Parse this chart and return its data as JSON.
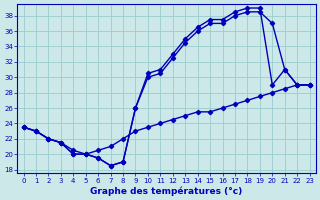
{
  "xlabel": "Graphe des températures (°c)",
  "bg_color": "#cce8e8",
  "grid_color": "#99cccc",
  "line_color": "#0000bb",
  "xlim": [
    -0.5,
    23.5
  ],
  "ylim": [
    17.5,
    39.5
  ],
  "yticks": [
    18,
    20,
    22,
    24,
    26,
    28,
    30,
    32,
    34,
    36,
    38
  ],
  "xticks": [
    0,
    1,
    2,
    3,
    4,
    5,
    6,
    7,
    8,
    9,
    10,
    11,
    12,
    13,
    14,
    15,
    16,
    17,
    18,
    19,
    20,
    21,
    22,
    23
  ],
  "line1_x": [
    0,
    1,
    2,
    3,
    4,
    5,
    6,
    7,
    8,
    9,
    10,
    11,
    12,
    13,
    14,
    15,
    16,
    17,
    18,
    19,
    20,
    21,
    22,
    23
  ],
  "line1_y": [
    23.5,
    23.0,
    22.0,
    21.5,
    20.0,
    20.0,
    19.5,
    18.5,
    19.0,
    26.0,
    30.5,
    31.0,
    33.0,
    35.0,
    36.5,
    37.5,
    37.5,
    38.5,
    39.0,
    39.0,
    29.0,
    31.0,
    29.0,
    29.0
  ],
  "line2_x": [
    0,
    1,
    2,
    3,
    4,
    5,
    6,
    7,
    8,
    9,
    10,
    11,
    12,
    13,
    14,
    15,
    16,
    17,
    18,
    19,
    20,
    21,
    22,
    23
  ],
  "line2_y": [
    23.5,
    23.0,
    22.0,
    21.5,
    20.0,
    20.0,
    19.5,
    18.5,
    19.0,
    26.0,
    30.0,
    30.5,
    32.5,
    34.5,
    36.0,
    37.0,
    37.0,
    38.0,
    38.5,
    38.5,
    37.0,
    31.0,
    29.0,
    29.0
  ],
  "line3_x": [
    0,
    1,
    2,
    3,
    4,
    5,
    6,
    7,
    8,
    9,
    10,
    11,
    12,
    13,
    14,
    15,
    16,
    17,
    18,
    19,
    20,
    21,
    22,
    23
  ],
  "line3_y": [
    23.5,
    23.0,
    22.0,
    21.5,
    20.5,
    20.0,
    20.5,
    21.0,
    22.0,
    23.0,
    23.5,
    24.0,
    24.5,
    25.0,
    25.5,
    25.5,
    26.0,
    26.5,
    27.0,
    27.5,
    28.0,
    28.5,
    29.0,
    29.0
  ],
  "marker_size": 2.2,
  "line_width": 1.0,
  "tick_fontsize": 5.0,
  "xlabel_fontsize": 6.5
}
